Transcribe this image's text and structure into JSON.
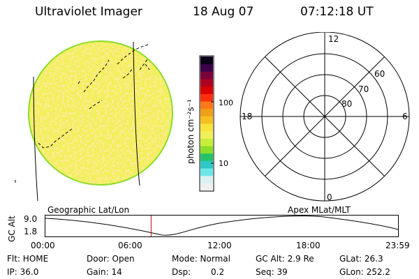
{
  "header": {
    "title": "Ultraviolet Imager",
    "date": "18 Aug 07",
    "time": "07:12:18 UT"
  },
  "colorbar": {
    "unit_label": "photon cm⁻²s⁻¹",
    "tick_100": "100",
    "tick_10": "10",
    "colors": [
      "#f0f0f0",
      "#d8f0f0",
      "#6ee6e6",
      "#2ec8c8",
      "#26c26a",
      "#8cdc2a",
      "#c8ee3a",
      "#f0f05a",
      "#f8e43a",
      "#f6c020",
      "#f0a018",
      "#ff7818",
      "#ff3010",
      "#dc0000",
      "#b00020",
      "#7a003c",
      "#3c004a",
      "#0a0018"
    ]
  },
  "polar": {
    "label_12": "12",
    "label_6": "6",
    "label_18": "18",
    "label_0": "0",
    "lat_60": "60",
    "lat_70": "70",
    "lat_80": "80"
  },
  "timeline": {
    "left_caption": "Geographic Lat/Lon",
    "right_caption": "Apex  MLat/MLT",
    "axis_label": "GC Alt",
    "y_max": "9.0",
    "y_min": "1.8",
    "x_ticks": [
      "00:00",
      "06:00",
      "12:00",
      "18:00",
      "23:59"
    ],
    "marker_color": "#cc0000",
    "marker_hour": 7.2
  },
  "status": {
    "flt": "Flt: HOME",
    "door": "Door: Open",
    "mode": "Mode: Normal",
    "gc_alt": "GC Alt: 2.9 Re",
    "glat": "GLat:  26.3",
    "ip": "IP: 36.0",
    "gain": "Gain: 14",
    "dsp_label": "Dsp:",
    "dsp_value": "0.2",
    "seq": "Seq: 39",
    "glon": "GLon: 252.2"
  }
}
